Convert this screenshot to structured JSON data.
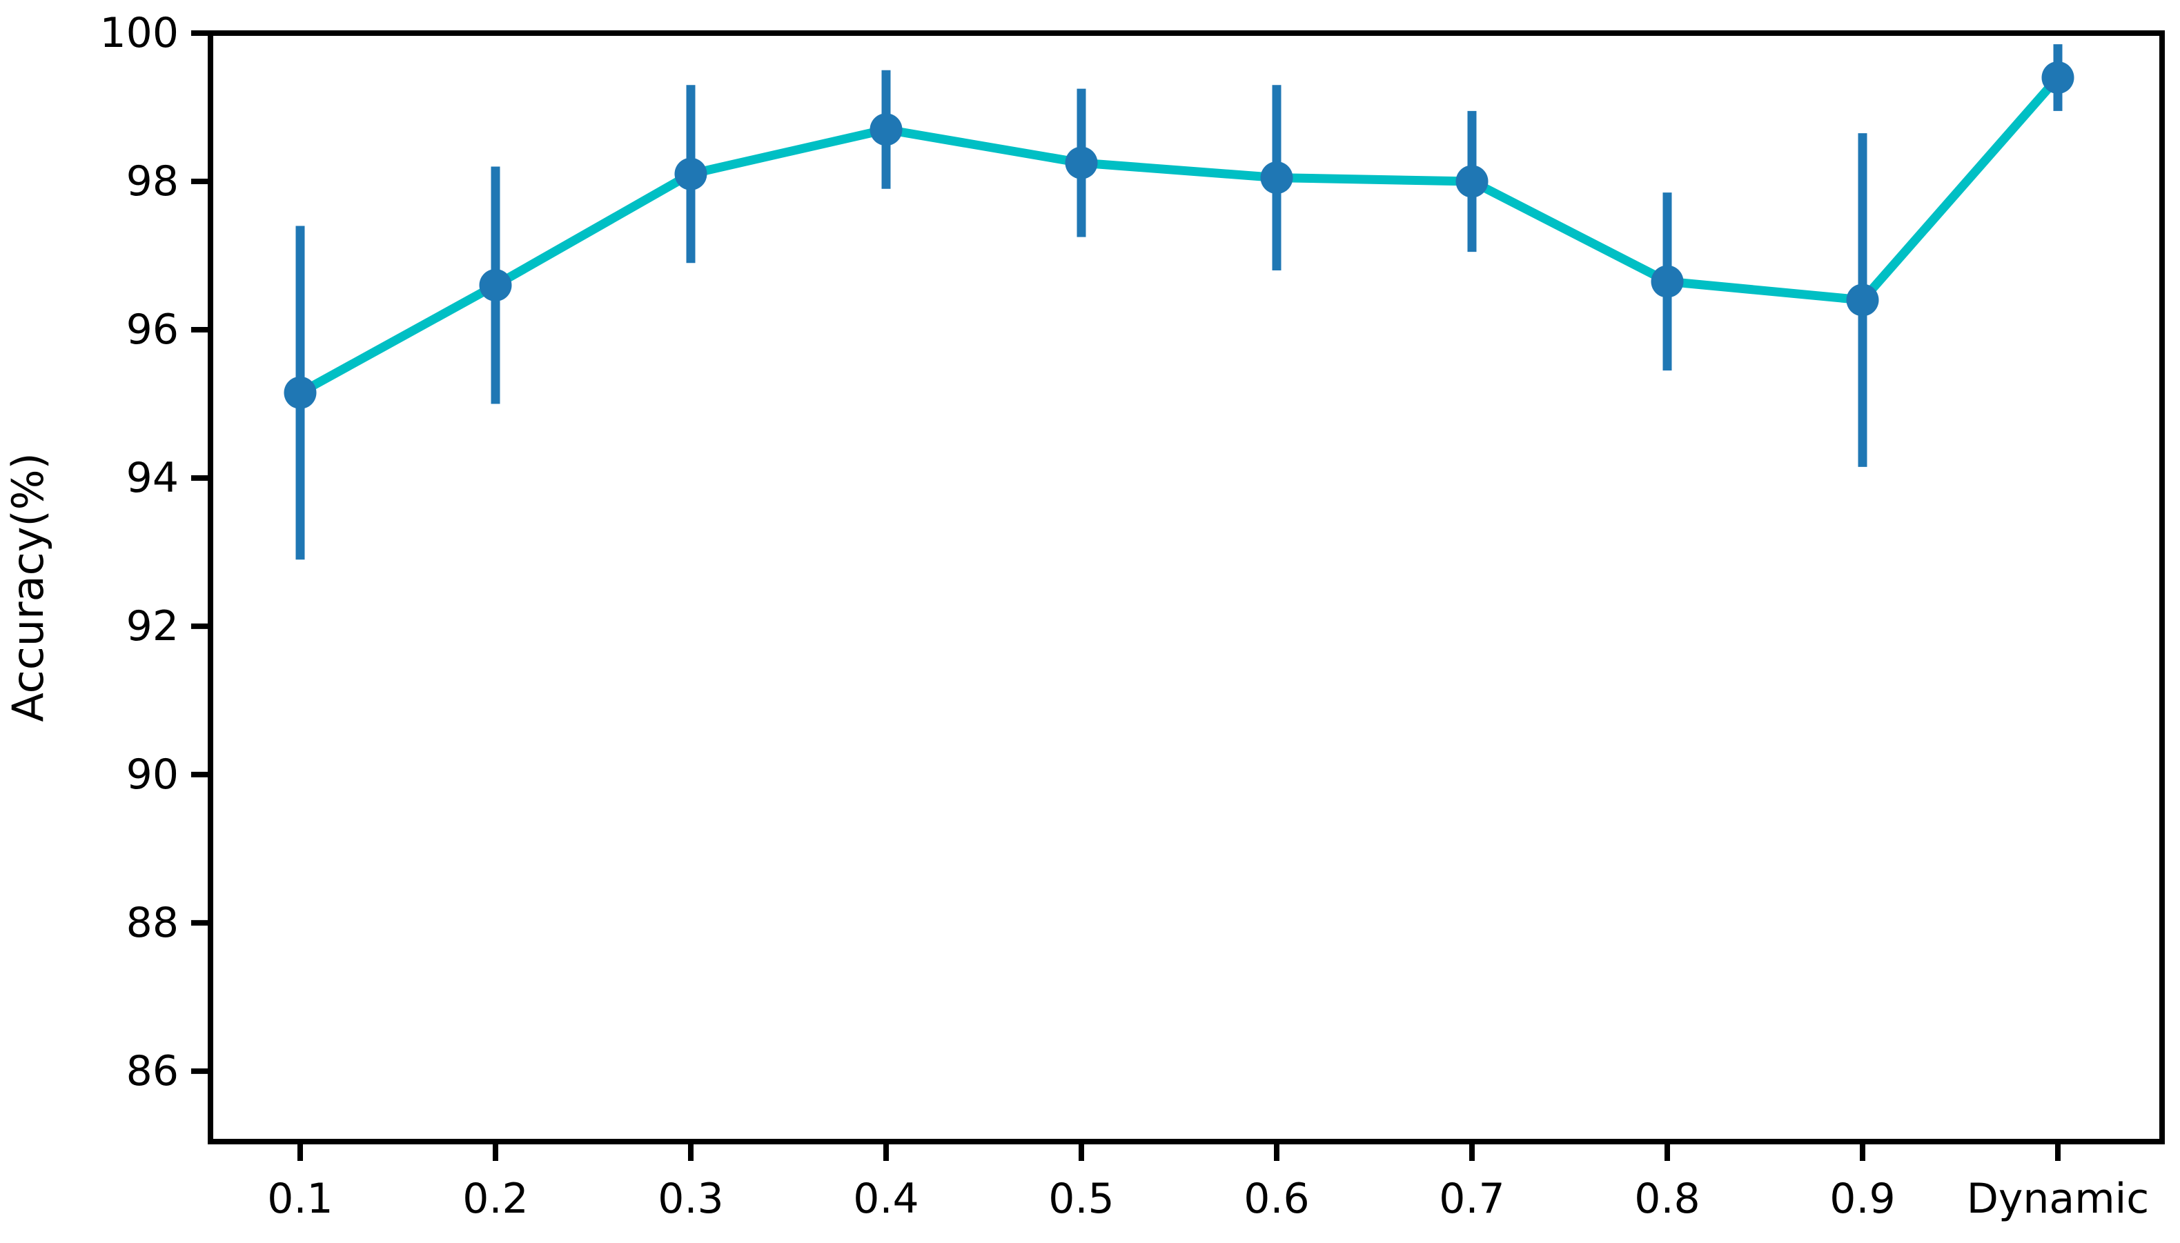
{
  "figure": {
    "title": "",
    "background": "#ffffff"
  },
  "chart_data": {
    "type": "line",
    "title": "",
    "xlabel": "",
    "ylabel": "Accuracy(%)",
    "categories": [
      "0.1",
      "0.2",
      "0.3",
      "0.4",
      "0.5",
      "0.6",
      "0.7",
      "0.8",
      "0.9",
      "Dynamic"
    ],
    "series": [
      {
        "name": "Accuracy",
        "values": [
          95.15,
          96.6,
          98.1,
          98.7,
          98.25,
          98.05,
          98.0,
          96.65,
          96.4,
          99.4
        ],
        "yerr": [
          2.25,
          1.6,
          1.2,
          0.8,
          1.0,
          1.25,
          0.95,
          1.2,
          2.25,
          0.45
        ]
      }
    ],
    "ylim": [
      85.05,
      100
    ],
    "yticks": [
      86,
      88,
      90,
      92,
      94,
      96,
      98,
      100
    ],
    "grid": false,
    "legend": "none",
    "error_caps": false,
    "colors": {
      "line": "#00bfc4",
      "marker": "#1f77b4",
      "error_bar": "#1f77b4",
      "axis": "#000000",
      "background": "#ffffff"
    }
  }
}
